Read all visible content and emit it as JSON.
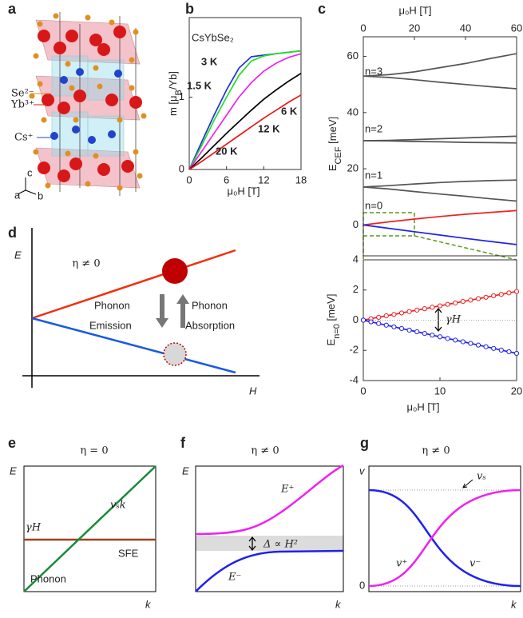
{
  "panel_letters": [
    "a",
    "b",
    "c",
    "d",
    "e",
    "f",
    "g"
  ],
  "crystal": {
    "ion_labels": [
      "Se²⁻",
      "Yb³⁺",
      "Cs⁺"
    ],
    "axis_labels": [
      "a",
      "b",
      "c"
    ]
  },
  "chart_data": [
    {
      "type": "line",
      "title": "CsYbSe₂",
      "xlabel": "μ₀H [T]",
      "ylabel": [
        "m [μ",
        "B",
        "/Yb]"
      ],
      "x": [
        0,
        2,
        4,
        6,
        8,
        10,
        12,
        14,
        16,
        18
      ],
      "series": [
        {
          "name": "1.5 K",
          "color": "#1f2fe0",
          "values": [
            0,
            0.38,
            0.75,
            1.1,
            1.4,
            1.56,
            1.58,
            1.6,
            1.62,
            1.64
          ]
        },
        {
          "name": "3 K",
          "color": "#22e022",
          "values": [
            0,
            0.33,
            0.68,
            1.0,
            1.3,
            1.5,
            1.57,
            1.6,
            1.62,
            1.64
          ]
        },
        {
          "name": "6 K",
          "color": "#f020f0",
          "values": [
            0,
            0.25,
            0.5,
            0.75,
            1.0,
            1.2,
            1.36,
            1.47,
            1.55,
            1.6
          ]
        },
        {
          "name": "12 K",
          "color": "#000000",
          "values": [
            0,
            0.16,
            0.33,
            0.5,
            0.66,
            0.82,
            0.97,
            1.1,
            1.22,
            1.33
          ]
        },
        {
          "name": "20 K",
          "color": "#e81818",
          "values": [
            0,
            0.11,
            0.23,
            0.35,
            0.47,
            0.59,
            0.71,
            0.82,
            0.93,
            1.03
          ]
        }
      ],
      "xlim": [
        0,
        18
      ],
      "ylim": [
        0,
        2.1
      ],
      "xticks": [
        0,
        6,
        12,
        18
      ],
      "yticks": [
        0,
        1
      ]
    },
    {
      "type": "line",
      "xlabel": "μ₀H [T]",
      "ylabel": [
        "E",
        "CEF",
        " [meV]"
      ],
      "x": [
        0,
        10,
        20,
        30,
        40,
        50,
        60
      ],
      "series": [
        {
          "color": "#555555",
          "values": [
            53,
            53.5,
            54.5,
            56,
            57.5,
            59.3,
            61
          ]
        },
        {
          "color": "#555555",
          "values": [
            53,
            52.5,
            51.7,
            50.8,
            50,
            49.2,
            48.5
          ]
        },
        {
          "color": "#555555",
          "values": [
            30,
            30.1,
            30.4,
            30.7,
            31,
            31.3,
            31.6
          ]
        },
        {
          "color": "#555555",
          "values": [
            30,
            29.9,
            29.7,
            29.6,
            29.4,
            29.3,
            29.2
          ]
        },
        {
          "color": "#555555",
          "values": [
            13.5,
            14,
            14.6,
            15.1,
            15.5,
            15.8,
            16
          ]
        },
        {
          "color": "#555555",
          "values": [
            13.5,
            12.8,
            11.9,
            11,
            10.2,
            9.3,
            8.5
          ]
        },
        {
          "color": "#f02020",
          "values": [
            0,
            1.1,
            2.1,
            3,
            3.8,
            4.5,
            5.1
          ]
        },
        {
          "color": "#2020f0",
          "values": [
            0,
            -1.2,
            -2.4,
            -3.6,
            -4.8,
            -5.9,
            -7.0
          ]
        }
      ],
      "annotations": [
        "n=3",
        "n=2",
        "n=1",
        "n=0"
      ],
      "xlim": [
        0,
        60
      ],
      "ylim": [
        -11,
        67
      ],
      "xticks": [
        0,
        20,
        40,
        60
      ],
      "yticks": [
        0,
        20,
        40,
        60
      ]
    },
    {
      "type": "line",
      "markers": true,
      "zero_line": true,
      "xlabel": "μ₀H [T]",
      "ylabel": [
        "E",
        "n=0",
        " [meV]"
      ],
      "x": [
        0,
        1,
        2,
        3,
        4,
        5,
        6,
        7,
        8,
        9,
        10,
        11,
        12,
        13,
        14,
        15,
        16,
        17,
        18,
        19,
        20
      ],
      "series": [
        {
          "color": "#f02020",
          "values": [
            0,
            0.1,
            0.19,
            0.29,
            0.38,
            0.48,
            0.57,
            0.67,
            0.76,
            0.86,
            0.95,
            1.05,
            1.14,
            1.24,
            1.33,
            1.43,
            1.52,
            1.62,
            1.71,
            1.81,
            1.9
          ]
        },
        {
          "color": "#2020f0",
          "values": [
            0,
            -0.11,
            -0.22,
            -0.33,
            -0.44,
            -0.55,
            -0.66,
            -0.77,
            -0.88,
            -0.99,
            -1.1,
            -1.21,
            -1.32,
            -1.43,
            -1.54,
            -1.65,
            -1.76,
            -1.87,
            -1.98,
            -2.09,
            -2.2
          ]
        }
      ],
      "annotations": [
        "γH"
      ],
      "xlim": [
        0,
        20
      ],
      "ylim": [
        -4,
        4
      ],
      "xticks": [
        0,
        10,
        20
      ],
      "yticks": [
        -4,
        -2,
        0,
        2,
        4
      ]
    }
  ],
  "schematic_d": {
    "title": "η ≠ 0",
    "xlabel": "H",
    "ylabel": "E",
    "labels": [
      "Phonon",
      "Emission",
      "Phonon",
      "Absorption"
    ]
  },
  "schematic_e": {
    "title": "η = 0",
    "xlabel": "k",
    "ylabel": "E",
    "labels": [
      "vₛk",
      "γH",
      "SFE",
      "Phonon"
    ]
  },
  "schematic_f": {
    "title": "η ≠ 0",
    "xlabel": "k",
    "ylabel": "E",
    "labels": [
      "E⁺",
      "E⁻",
      "Δ ∝ H²"
    ]
  },
  "schematic_g": {
    "title": "η ≠ 0",
    "xlabel": "k",
    "ylabel": "v",
    "y_origin_label": 0,
    "labels": [
      "vₛ",
      "v⁺",
      "v⁻"
    ]
  }
}
